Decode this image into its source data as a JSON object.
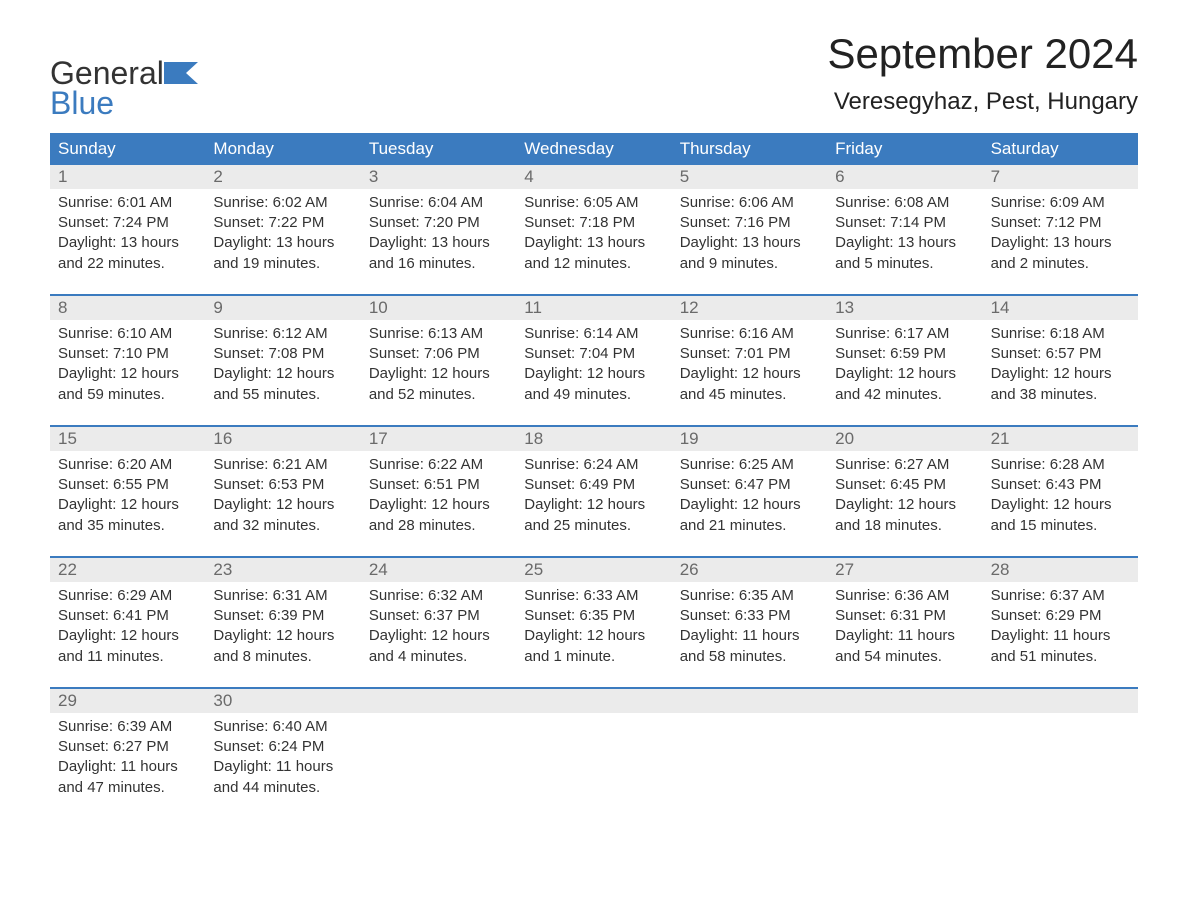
{
  "logo": {
    "text_top": "General",
    "text_bottom": "Blue",
    "accent_color": "#3b7bbf"
  },
  "title": "September 2024",
  "subtitle": "Veresegyhaz, Pest, Hungary",
  "colors": {
    "header_bg": "#3b7bbf",
    "header_text": "#ffffff",
    "page_bg": "#ffffff",
    "daynum_bg": "#ebebeb",
    "daynum_text": "#6a6a6a",
    "body_text": "#333333",
    "week_border": "#3b7bbf"
  },
  "day_names": [
    "Sunday",
    "Monday",
    "Tuesday",
    "Wednesday",
    "Thursday",
    "Friday",
    "Saturday"
  ],
  "weeks": [
    [
      {
        "n": "1",
        "sunrise": "6:01 AM",
        "sunset": "7:24 PM",
        "daylight": "13 hours and 22 minutes."
      },
      {
        "n": "2",
        "sunrise": "6:02 AM",
        "sunset": "7:22 PM",
        "daylight": "13 hours and 19 minutes."
      },
      {
        "n": "3",
        "sunrise": "6:04 AM",
        "sunset": "7:20 PM",
        "daylight": "13 hours and 16 minutes."
      },
      {
        "n": "4",
        "sunrise": "6:05 AM",
        "sunset": "7:18 PM",
        "daylight": "13 hours and 12 minutes."
      },
      {
        "n": "5",
        "sunrise": "6:06 AM",
        "sunset": "7:16 PM",
        "daylight": "13 hours and 9 minutes."
      },
      {
        "n": "6",
        "sunrise": "6:08 AM",
        "sunset": "7:14 PM",
        "daylight": "13 hours and 5 minutes."
      },
      {
        "n": "7",
        "sunrise": "6:09 AM",
        "sunset": "7:12 PM",
        "daylight": "13 hours and 2 minutes."
      }
    ],
    [
      {
        "n": "8",
        "sunrise": "6:10 AM",
        "sunset": "7:10 PM",
        "daylight": "12 hours and 59 minutes."
      },
      {
        "n": "9",
        "sunrise": "6:12 AM",
        "sunset": "7:08 PM",
        "daylight": "12 hours and 55 minutes."
      },
      {
        "n": "10",
        "sunrise": "6:13 AM",
        "sunset": "7:06 PM",
        "daylight": "12 hours and 52 minutes."
      },
      {
        "n": "11",
        "sunrise": "6:14 AM",
        "sunset": "7:04 PM",
        "daylight": "12 hours and 49 minutes."
      },
      {
        "n": "12",
        "sunrise": "6:16 AM",
        "sunset": "7:01 PM",
        "daylight": "12 hours and 45 minutes."
      },
      {
        "n": "13",
        "sunrise": "6:17 AM",
        "sunset": "6:59 PM",
        "daylight": "12 hours and 42 minutes."
      },
      {
        "n": "14",
        "sunrise": "6:18 AM",
        "sunset": "6:57 PM",
        "daylight": "12 hours and 38 minutes."
      }
    ],
    [
      {
        "n": "15",
        "sunrise": "6:20 AM",
        "sunset": "6:55 PM",
        "daylight": "12 hours and 35 minutes."
      },
      {
        "n": "16",
        "sunrise": "6:21 AM",
        "sunset": "6:53 PM",
        "daylight": "12 hours and 32 minutes."
      },
      {
        "n": "17",
        "sunrise": "6:22 AM",
        "sunset": "6:51 PM",
        "daylight": "12 hours and 28 minutes."
      },
      {
        "n": "18",
        "sunrise": "6:24 AM",
        "sunset": "6:49 PM",
        "daylight": "12 hours and 25 minutes."
      },
      {
        "n": "19",
        "sunrise": "6:25 AM",
        "sunset": "6:47 PM",
        "daylight": "12 hours and 21 minutes."
      },
      {
        "n": "20",
        "sunrise": "6:27 AM",
        "sunset": "6:45 PM",
        "daylight": "12 hours and 18 minutes."
      },
      {
        "n": "21",
        "sunrise": "6:28 AM",
        "sunset": "6:43 PM",
        "daylight": "12 hours and 15 minutes."
      }
    ],
    [
      {
        "n": "22",
        "sunrise": "6:29 AM",
        "sunset": "6:41 PM",
        "daylight": "12 hours and 11 minutes."
      },
      {
        "n": "23",
        "sunrise": "6:31 AM",
        "sunset": "6:39 PM",
        "daylight": "12 hours and 8 minutes."
      },
      {
        "n": "24",
        "sunrise": "6:32 AM",
        "sunset": "6:37 PM",
        "daylight": "12 hours and 4 minutes."
      },
      {
        "n": "25",
        "sunrise": "6:33 AM",
        "sunset": "6:35 PM",
        "daylight": "12 hours and 1 minute."
      },
      {
        "n": "26",
        "sunrise": "6:35 AM",
        "sunset": "6:33 PM",
        "daylight": "11 hours and 58 minutes."
      },
      {
        "n": "27",
        "sunrise": "6:36 AM",
        "sunset": "6:31 PM",
        "daylight": "11 hours and 54 minutes."
      },
      {
        "n": "28",
        "sunrise": "6:37 AM",
        "sunset": "6:29 PM",
        "daylight": "11 hours and 51 minutes."
      }
    ],
    [
      {
        "n": "29",
        "sunrise": "6:39 AM",
        "sunset": "6:27 PM",
        "daylight": "11 hours and 47 minutes."
      },
      {
        "n": "30",
        "sunrise": "6:40 AM",
        "sunset": "6:24 PM",
        "daylight": "11 hours and 44 minutes."
      },
      null,
      null,
      null,
      null,
      null
    ]
  ],
  "labels": {
    "sunrise": "Sunrise:",
    "sunset": "Sunset:",
    "daylight": "Daylight:"
  }
}
